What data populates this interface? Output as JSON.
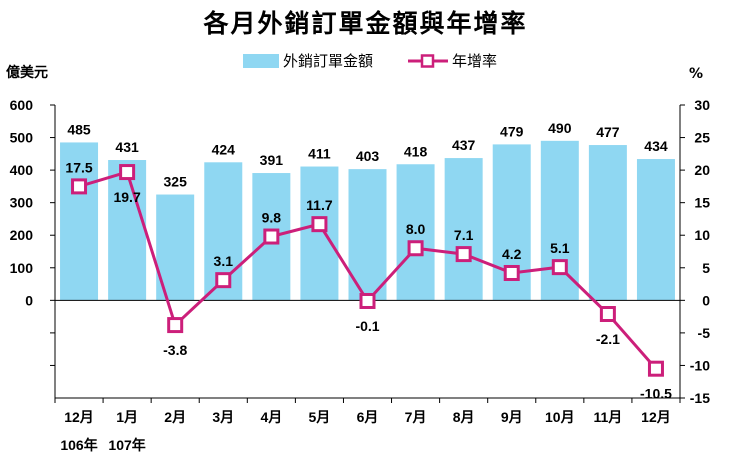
{
  "title": "各月外銷訂單金額與年增率",
  "left_unit": "億美元",
  "right_unit": "%",
  "legend": {
    "bar_label": "外銷訂單金額",
    "line_label": "年增率"
  },
  "colors": {
    "bar": "#8fd7f2",
    "line": "#cc1f7a",
    "marker_fill": "#ffffff"
  },
  "chart_data": {
    "type": "bar",
    "categories": [
      "12月",
      "1月",
      "2月",
      "3月",
      "4月",
      "5月",
      "6月",
      "7月",
      "8月",
      "9月",
      "10月",
      "11月",
      "12月"
    ],
    "year_labels": [
      "106年",
      "107年",
      "",
      "",
      "",
      "",
      "",
      "",
      "",
      "",
      "",
      "",
      ""
    ],
    "series": [
      {
        "name": "外銷訂單金額",
        "type": "bar",
        "axis": "left",
        "values": [
          485,
          431,
          325,
          424,
          391,
          411,
          403,
          418,
          437,
          479,
          490,
          477,
          434
        ]
      },
      {
        "name": "年增率",
        "type": "line",
        "axis": "right",
        "values": [
          17.5,
          19.7,
          -3.8,
          3.1,
          9.8,
          11.7,
          -0.1,
          8.0,
          7.1,
          4.2,
          5.1,
          -2.1,
          -10.5
        ]
      }
    ],
    "bar_labels": [
      "485",
      "431",
      "325",
      "424",
      "391",
      "411",
      "403",
      "418",
      "437",
      "479",
      "490",
      "477",
      "434"
    ],
    "line_labels": [
      "17.5",
      "19.7",
      "-3.8",
      "3.1",
      "9.8",
      "11.7",
      "-0.1",
      "8.0",
      "7.1",
      "4.2",
      "5.1",
      "-2.1",
      "-10.5"
    ],
    "y_left_ticks": [
      "600",
      "500",
      "400",
      "300",
      "200",
      "100",
      "0"
    ],
    "y_left_range": [
      -300,
      600
    ],
    "y_right_ticks": [
      "30",
      "25",
      "20",
      "15",
      "10",
      "5",
      "0",
      "-5",
      "-10",
      "-15"
    ],
    "y_right_range": [
      -15,
      30
    ],
    "grid": false,
    "legend_position": "top-center"
  }
}
